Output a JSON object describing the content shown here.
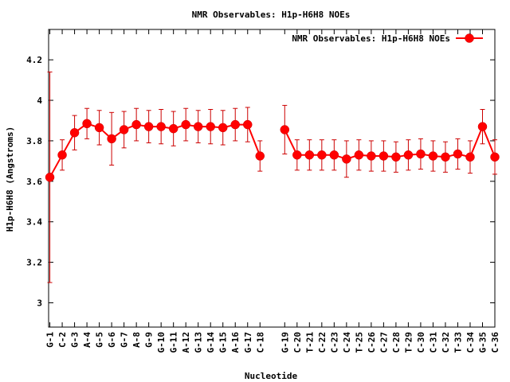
{
  "chart_data": {
    "type": "line",
    "title": "NMR Observables: H1p-H6H8 NOEs",
    "xlabel": "Nucleotide",
    "ylabel": "H1p-H6H8 (Angstroms)",
    "ylim": [
      2.88,
      4.35
    ],
    "yticks": [
      3,
      3.2,
      3.4,
      3.6,
      3.8,
      4,
      4.2
    ],
    "ytick_labels": [
      "3",
      "3.2",
      "3.4",
      "3.6",
      "3.8",
      "4",
      "4.2"
    ],
    "xlim": [
      0.9,
      37.0
    ],
    "legend": {
      "label": "NMR Observables: H1p-H6H8 NOEs",
      "position": "top-right"
    },
    "colors": {
      "line": "#ff0000",
      "errorbar": "#cc0000"
    },
    "grid": false,
    "series": [
      {
        "name": "NMR Observables: H1p-H6H8 NOEs",
        "points": [
          {
            "x": 1,
            "label": "G-1",
            "y": 3.62,
            "err": 0.52
          },
          {
            "x": 2,
            "label": "C-2",
            "y": 3.73,
            "err": 0.075
          },
          {
            "x": 3,
            "label": "G-3",
            "y": 3.84,
            "err": 0.085
          },
          {
            "x": 4,
            "label": "A-4",
            "y": 3.885,
            "err": 0.075
          },
          {
            "x": 5,
            "label": "G-5",
            "y": 3.865,
            "err": 0.085
          },
          {
            "x": 6,
            "label": "G-6",
            "y": 3.81,
            "err": 0.13
          },
          {
            "x": 7,
            "label": "G-7",
            "y": 3.855,
            "err": 0.09
          },
          {
            "x": 8,
            "label": "A-8",
            "y": 3.88,
            "err": 0.08
          },
          {
            "x": 9,
            "label": "G-9",
            "y": 3.87,
            "err": 0.08
          },
          {
            "x": 10,
            "label": "G-10",
            "y": 3.87,
            "err": 0.085
          },
          {
            "x": 11,
            "label": "G-11",
            "y": 3.86,
            "err": 0.085
          },
          {
            "x": 12,
            "label": "A-12",
            "y": 3.88,
            "err": 0.08
          },
          {
            "x": 13,
            "label": "G-13",
            "y": 3.87,
            "err": 0.08
          },
          {
            "x": 14,
            "label": "G-14",
            "y": 3.87,
            "err": 0.085
          },
          {
            "x": 15,
            "label": "G-15",
            "y": 3.865,
            "err": 0.085
          },
          {
            "x": 16,
            "label": "A-16",
            "y": 3.88,
            "err": 0.08
          },
          {
            "x": 17,
            "label": "G-17",
            "y": 3.88,
            "err": 0.085
          },
          {
            "x": 18,
            "label": "C-18",
            "y": 3.725,
            "err": 0.075
          },
          {
            "x": 20,
            "label": "G-19",
            "y": 3.855,
            "err": 0.12
          },
          {
            "x": 21,
            "label": "C-20",
            "y": 3.73,
            "err": 0.075
          },
          {
            "x": 22,
            "label": "T-21",
            "y": 3.73,
            "err": 0.075
          },
          {
            "x": 23,
            "label": "C-22",
            "y": 3.73,
            "err": 0.075
          },
          {
            "x": 24,
            "label": "C-23",
            "y": 3.73,
            "err": 0.075
          },
          {
            "x": 25,
            "label": "C-24",
            "y": 3.71,
            "err": 0.09
          },
          {
            "x": 26,
            "label": "T-25",
            "y": 3.73,
            "err": 0.075
          },
          {
            "x": 27,
            "label": "C-26",
            "y": 3.725,
            "err": 0.075
          },
          {
            "x": 28,
            "label": "C-27",
            "y": 3.725,
            "err": 0.075
          },
          {
            "x": 29,
            "label": "C-28",
            "y": 3.72,
            "err": 0.075
          },
          {
            "x": 30,
            "label": "T-29",
            "y": 3.73,
            "err": 0.075
          },
          {
            "x": 31,
            "label": "C-30",
            "y": 3.735,
            "err": 0.075
          },
          {
            "x": 32,
            "label": "C-31",
            "y": 3.725,
            "err": 0.075
          },
          {
            "x": 33,
            "label": "C-32",
            "y": 3.72,
            "err": 0.075
          },
          {
            "x": 34,
            "label": "T-33",
            "y": 3.735,
            "err": 0.075
          },
          {
            "x": 35,
            "label": "C-34",
            "y": 3.72,
            "err": 0.08
          },
          {
            "x": 36,
            "label": "G-35",
            "y": 3.87,
            "err": 0.085
          },
          {
            "x": 37,
            "label": "C-36",
            "y": 3.72,
            "err": 0.085
          }
        ]
      }
    ]
  }
}
